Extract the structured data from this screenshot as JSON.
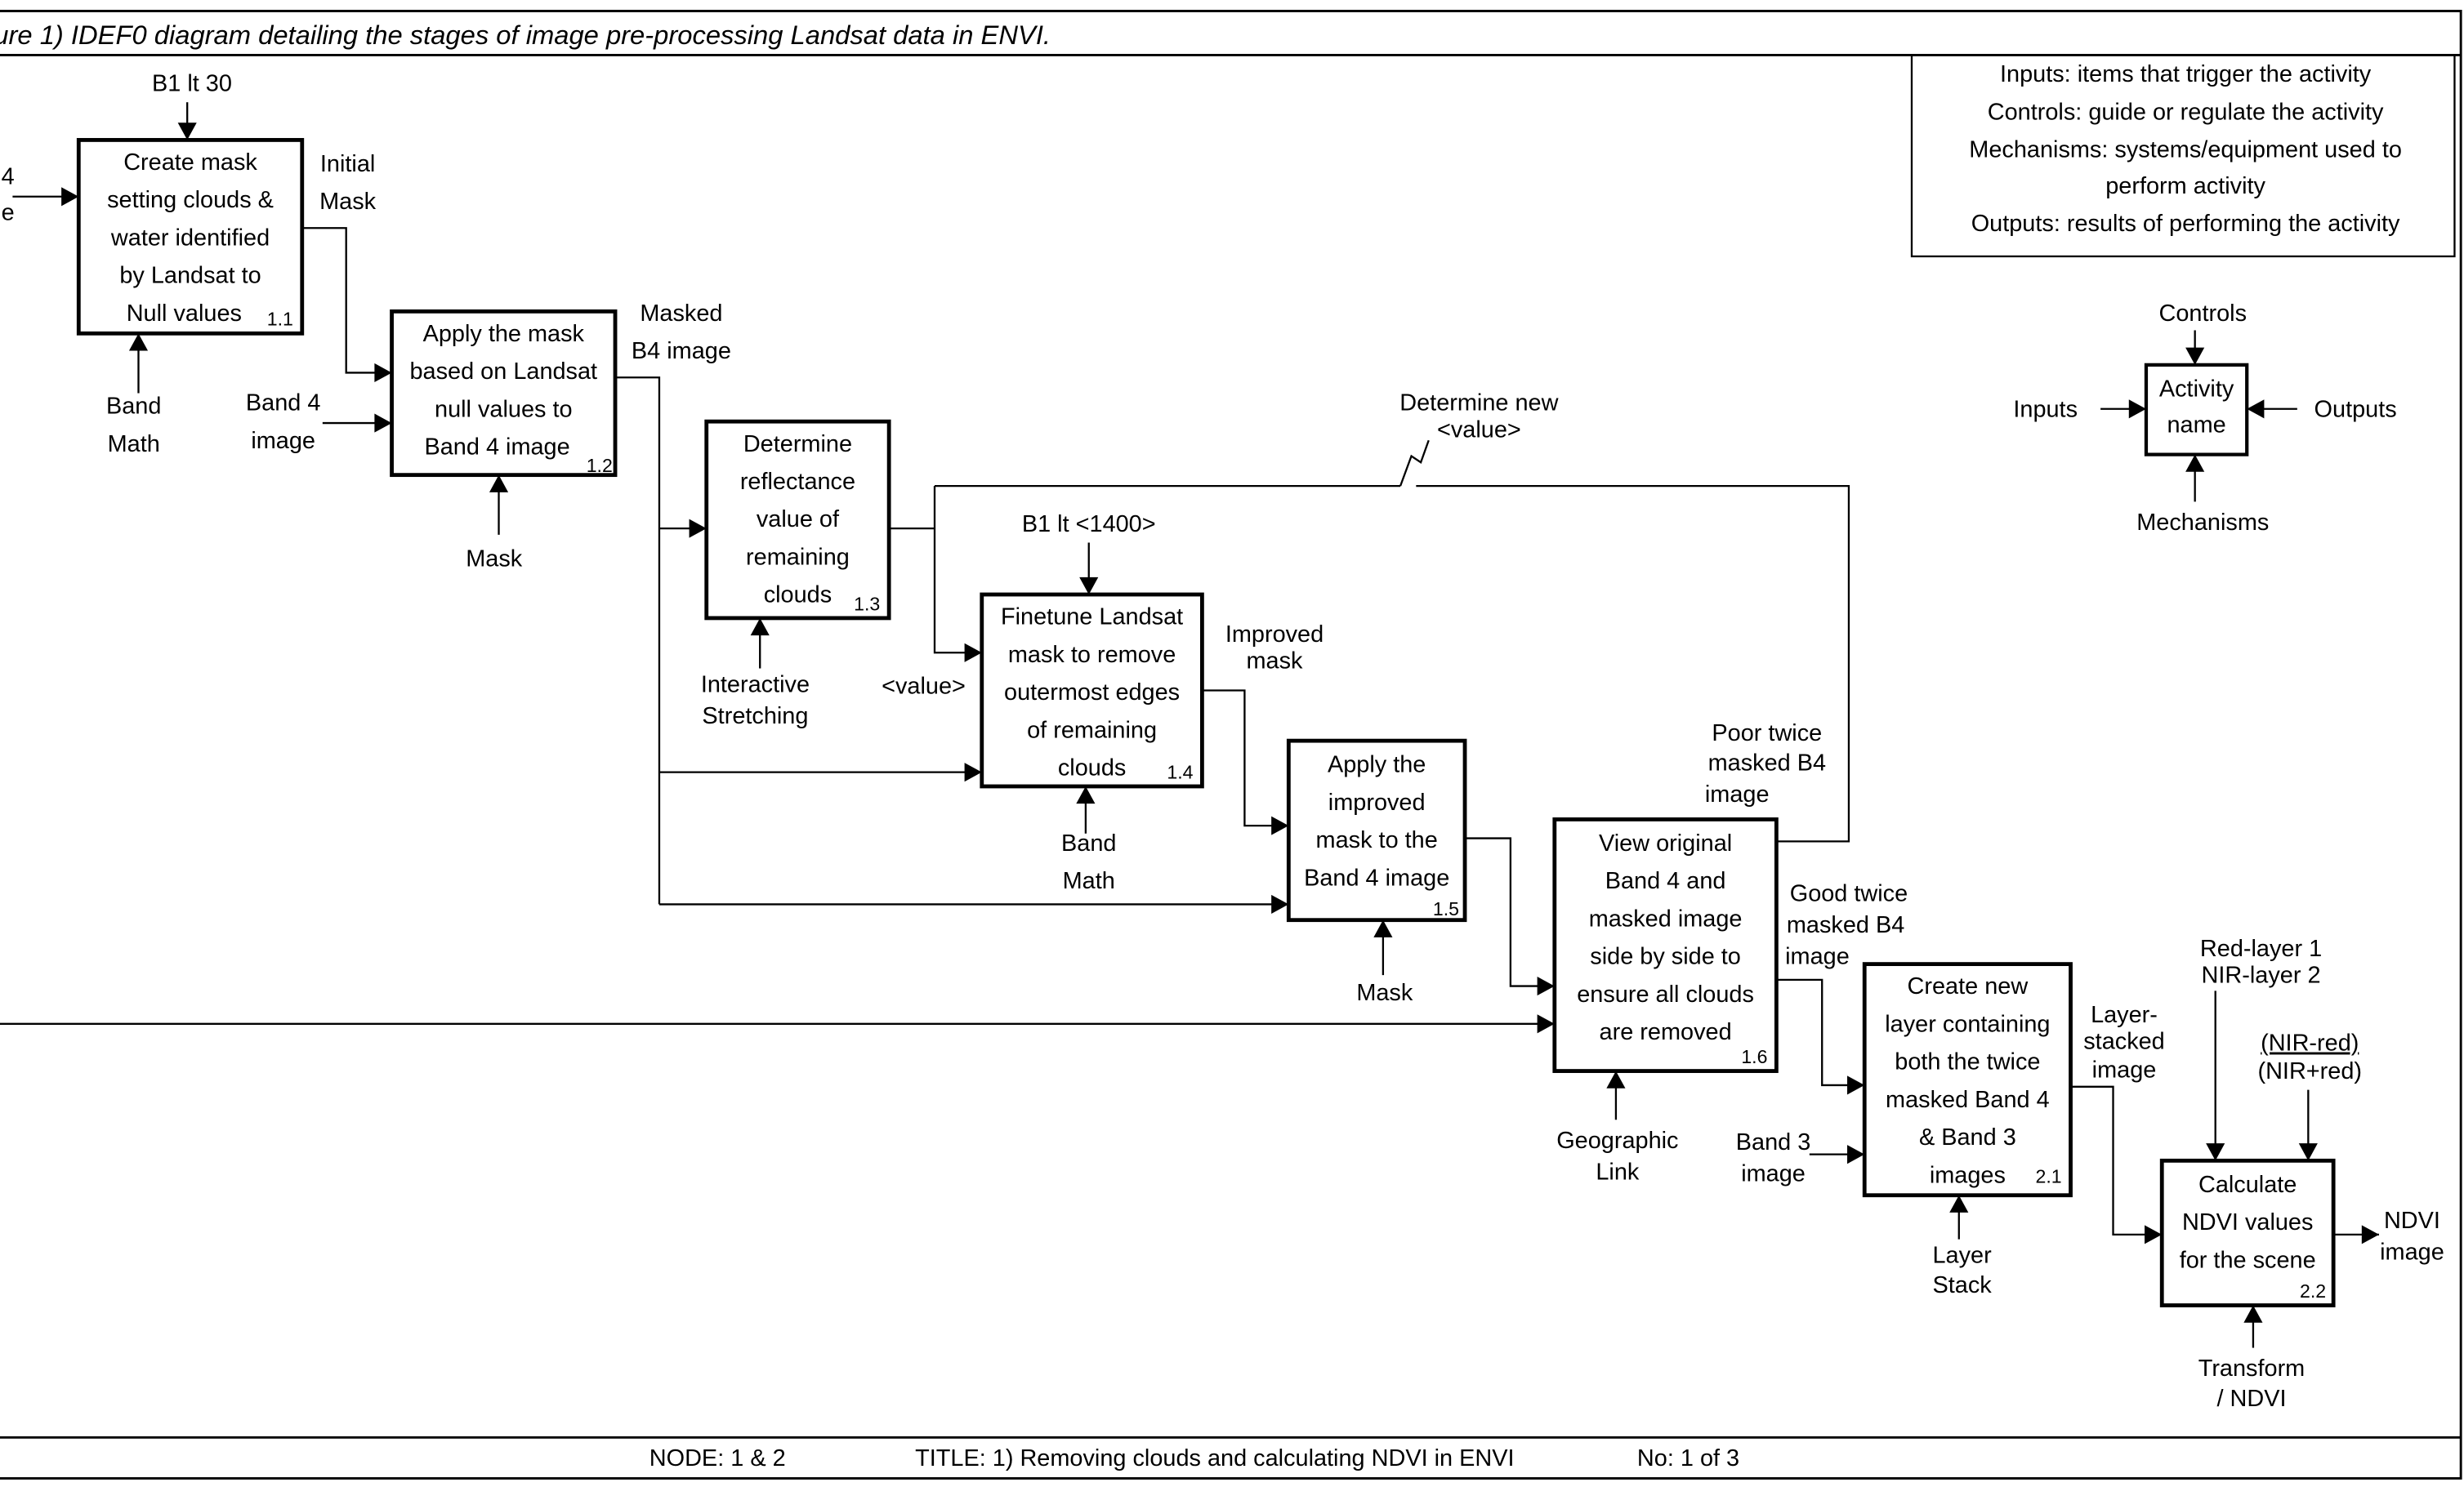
{
  "caption": "ure 1) IDEF0 diagram detailing the stages of image pre-processing Landsat data in ENVI.",
  "legend": {
    "lines": [
      "Inputs: items that trigger the activity",
      "Controls: guide or regulate the activity",
      "Mechanisms: systems/equipment used to",
      "perform activity",
      "Outputs: results of performing the activity"
    ]
  },
  "key": {
    "activity": [
      "Activity",
      "name"
    ],
    "controls": "Controls",
    "inputs": "Inputs",
    "outputs": "Outputs",
    "mechanisms": "Mechanisms"
  },
  "activities": [
    {
      "id": "1.1",
      "lines": [
        "Create mask",
        "setting clouds &",
        "water identified",
        "by Landsat to",
        "Null values"
      ]
    },
    {
      "id": "1.2",
      "lines": [
        "Apply the mask",
        "based on Landsat",
        "null values to",
        "Band 4 image"
      ]
    },
    {
      "id": "1.3",
      "lines": [
        "Determine",
        "reflectance",
        "value of",
        "remaining",
        "clouds"
      ]
    },
    {
      "id": "1.4",
      "lines": [
        "Finetune Landsat",
        "mask to remove",
        "outermost edges",
        "of remaining",
        "clouds"
      ]
    },
    {
      "id": "1.5",
      "lines": [
        "Apply the",
        "improved",
        "mask to the",
        "Band 4 image"
      ]
    },
    {
      "id": "1.6",
      "lines": [
        "View original",
        "Band 4 and",
        "masked image",
        "side by side to",
        "ensure all clouds",
        "are removed"
      ]
    },
    {
      "id": "2.1",
      "lines": [
        "Create new",
        "layer containing",
        "both the twice",
        "masked Band 4",
        "& Band 3",
        "images"
      ]
    },
    {
      "id": "2.2",
      "lines": [
        "Calculate",
        "NDVI values",
        "for the scene"
      ]
    }
  ],
  "labels": {
    "input_band4_cut": [
      "4",
      "e"
    ],
    "b1_lt_30": "B1 lt 30",
    "band_math_1": [
      "Band",
      "Math"
    ],
    "initial_mask": [
      "Initial",
      "Mask"
    ],
    "band4_image": [
      "Band 4",
      "image"
    ],
    "mask_1": "Mask",
    "masked_b4": [
      "Masked",
      "B4 image"
    ],
    "interactive_stretching": [
      "Interactive",
      "Stretching"
    ],
    "determine_new_value": [
      "Determine new",
      "<value>"
    ],
    "value": "<value>",
    "b1_lt_1400": "B1 lt <1400>",
    "band_math_2": [
      "Band",
      "Math"
    ],
    "improved_mask": [
      "Improved",
      "mask"
    ],
    "mask_2": "Mask",
    "poor_twice": [
      "Poor twice",
      "masked B4",
      "image"
    ],
    "good_twice": [
      "Good twice",
      "masked B4",
      "image"
    ],
    "geographic_link": [
      "Geographic",
      "Link"
    ],
    "band3_image": [
      "Band 3",
      "image"
    ],
    "layer_stack": [
      "Layer",
      "Stack"
    ],
    "layer_stacked": [
      "Layer-",
      "stacked",
      "image"
    ],
    "red_nir": [
      "Red-layer 1",
      "NIR-layer 2"
    ],
    "ndvi_formula": [
      "(NIR-red)",
      "(NIR+red)"
    ],
    "transform_ndvi": [
      "Transform",
      "/ NDVI"
    ],
    "ndvi_image": [
      "NDVI",
      "image"
    ]
  },
  "footer": {
    "node": "NODE: 1 & 2",
    "title": "TITLE: 1) Removing clouds and calculating NDVI in ENVI",
    "number": "No: 1 of 3"
  }
}
